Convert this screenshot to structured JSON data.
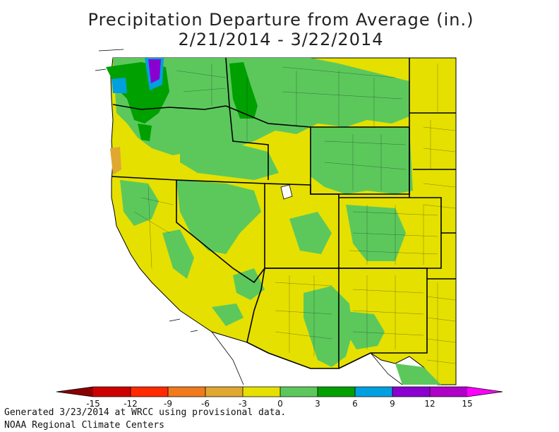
{
  "title_line1": "Precipitation Departure from Average (in.)",
  "title_line2": "2/21/2014 - 3/22/2014",
  "footer_line1": "Generated 3/23/2014 at WRCC using provisional data.",
  "footer_line2": "NOAA Regional Climate Centers",
  "legend": {
    "ticks": [
      "-15",
      "-12",
      "-9",
      "-6",
      "-3",
      "0",
      "3",
      "6",
      "9",
      "12",
      "15"
    ],
    "colors": [
      "#8b0000",
      "#cc0000",
      "#ff2a00",
      "#f07a1c",
      "#e0a830",
      "#e5e000",
      "#5cc85c",
      "#00a000",
      "#00a0e0",
      "#8a00d0",
      "#b000c8",
      "#ff00ff"
    ]
  },
  "colors": {
    "dry_light": "#e0a830",
    "near_normal": "#e5e000",
    "wet_light": "#5cc85c",
    "wet_moderate": "#00a000",
    "wet_heavy": "#00a0e0",
    "wet_extreme": "#8a00d0",
    "border": "#000000"
  }
}
